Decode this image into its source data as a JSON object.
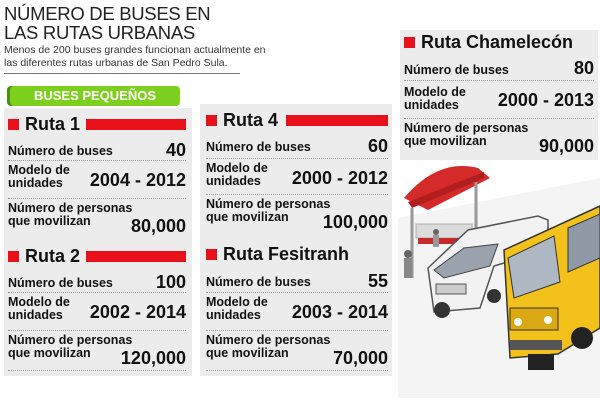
{
  "title": "NÚMERO DE BUSES EN LAS RUTAS URBANAS",
  "subtitle": "Menos de  200 buses grandes funcionan actualmente en las diferentes rutas urbanas de San Pedro Sula.",
  "badge": "BUSES PEQUEÑOS",
  "labels": {
    "buses": "Número de buses",
    "modelo": "Modelo de unidades",
    "personas": "Número de personas que movilizan"
  },
  "routes": [
    {
      "name": "Ruta 1",
      "buses": "40",
      "modelo": "2004 - 2012",
      "personas": "80,000"
    },
    {
      "name": "Ruta 2",
      "buses": "100",
      "modelo": "2002 - 2014",
      "personas": "120,000"
    },
    {
      "name": "Ruta 4",
      "buses": "60",
      "modelo": "2000 - 2012",
      "personas": "100,000"
    },
    {
      "name": "Ruta Fesitranh",
      "buses": "55",
      "modelo": "2003 - 2014",
      "personas": "70,000"
    },
    {
      "name": "Ruta Chamelecón",
      "buses": "80",
      "modelo": "2000 - 2013",
      "personas": "90,000"
    }
  ],
  "colors": {
    "red": "#e8101a",
    "green": "#7ed01e",
    "yellow": "#f2c21a",
    "card": "#ececec"
  },
  "illustration": "bus-stop-with-van-and-school-bus"
}
